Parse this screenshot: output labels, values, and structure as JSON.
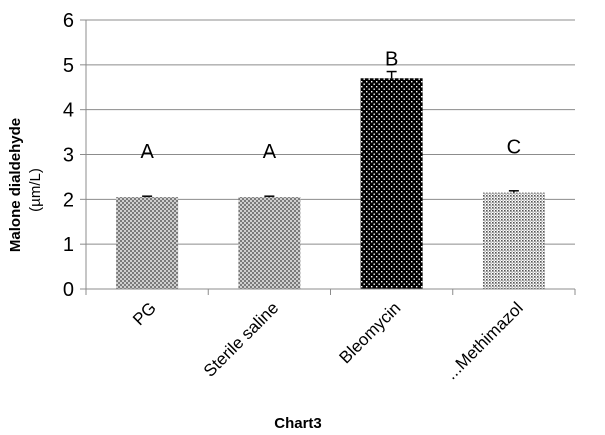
{
  "chart_data": {
    "type": "bar",
    "categories": [
      "PG",
      "Sterile saline",
      "Bleomycin",
      "...Methimazol"
    ],
    "values": [
      2.05,
      2.05,
      4.7,
      2.15
    ],
    "errors": [
      0.02,
      0.02,
      0.15,
      0.04
    ],
    "group_labels": [
      "A",
      "A",
      "B",
      "C"
    ],
    "xlabel": "Chart3",
    "ylabel": "Malone dialdehyde",
    "yunit": "(µm/L)",
    "ylim": [
      0,
      6
    ],
    "yticks": [
      0,
      1,
      2,
      3,
      4,
      5,
      6
    ],
    "grid": true,
    "legend": "none",
    "colors": {
      "pattern_light": "#9a9a9a",
      "pattern_dark": "#000000",
      "axis": "#8c8c8c",
      "grid": "#8c8c8c"
    }
  }
}
